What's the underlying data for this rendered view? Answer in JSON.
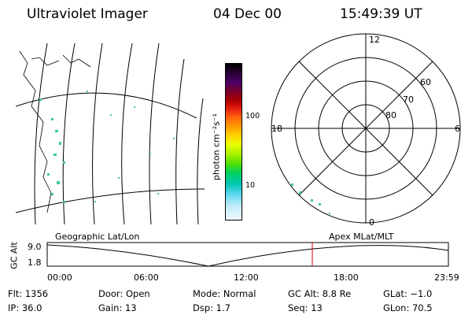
{
  "header": {
    "instrument": "Ultraviolet Imager",
    "date": "04 Dec 00",
    "time": "15:49:39 UT"
  },
  "colorbar": {
    "unit_label": "photon cm⁻²s⁻¹",
    "ticks": [
      "100",
      "10"
    ],
    "colors": [
      "#000000",
      "#2a0033",
      "#4a0066",
      "#7a0026",
      "#b00000",
      "#e62010",
      "#ff6010",
      "#ff9a00",
      "#ffd200",
      "#e8ff00",
      "#a8f000",
      "#50e000",
      "#00d060",
      "#00c8b4",
      "#60d8f0",
      "#c0ecf8",
      "#eef8fc"
    ]
  },
  "polar_plot": {
    "mlt_labels": {
      "top": "12",
      "left": "18",
      "right": "6",
      "bottom": "0"
    },
    "lat_labels": [
      "60",
      "70",
      "80"
    ]
  },
  "panel_labels": {
    "left": "Geographic Lat/Lon",
    "right": "Apex MLat/MLT"
  },
  "altitude_plot": {
    "axis_label": "GC Alt",
    "y_ticks": [
      "9.0",
      "1.8"
    ],
    "x_ticks": [
      "00:00",
      "06:00",
      "12:00",
      "18:00",
      "23:59"
    ],
    "current_time_marker_color": "#cc0000"
  },
  "status": {
    "flt": "Flt: 1356",
    "ip": "IP: 36.0",
    "door": "Door: Open",
    "gain": "Gain: 13",
    "mode": "Mode: Normal",
    "dsp": "Dsp:    1.7",
    "gc_alt": "GC Alt: 8.8 Re",
    "seq": "Seq: 13",
    "glat": "GLat:  −1.0",
    "glon": "GLon:  70.5"
  }
}
